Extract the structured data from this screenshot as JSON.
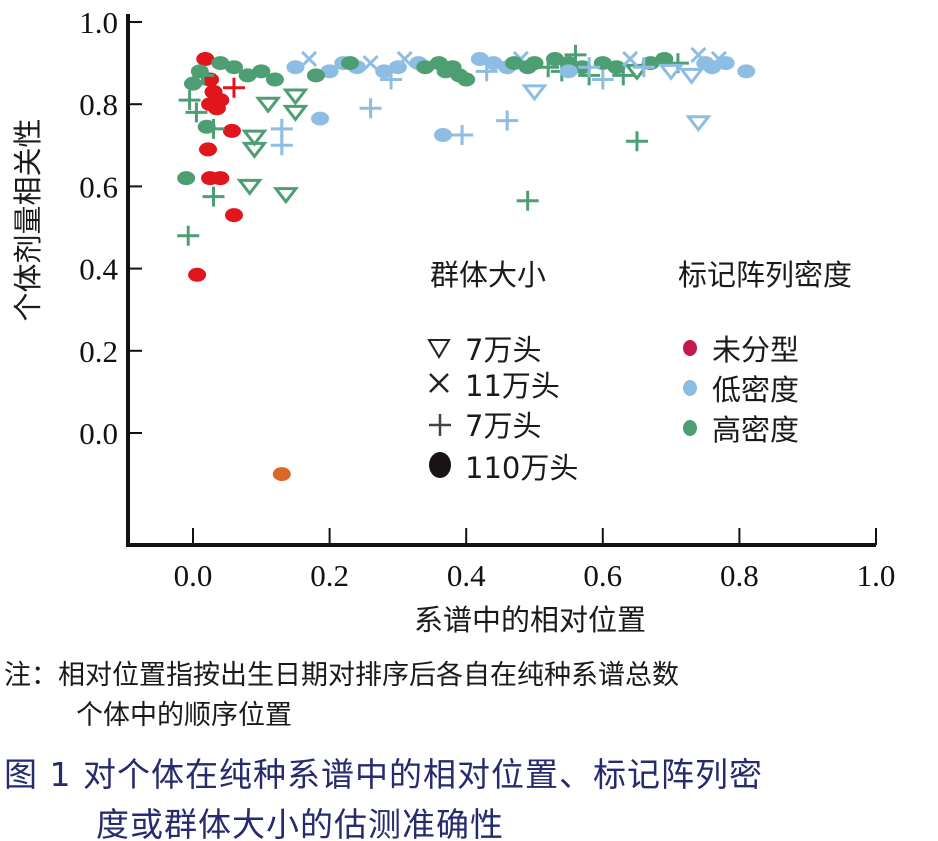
{
  "chart_data": {
    "type": "scatter",
    "title": "",
    "xlabel": "系谱中的相对位置",
    "ylabel": "个体剂量相关性",
    "xlim": [
      -0.1,
      1.0
    ],
    "ylim": [
      -0.25,
      1.0
    ],
    "xticks": [
      "0.0",
      "0.2",
      "0.4",
      "0.6",
      "0.8",
      "1.0"
    ],
    "yticks": [
      "0.0",
      "0.2",
      "0.4",
      "0.6",
      "0.8",
      "1.0"
    ],
    "grid": false,
    "legend_shape": {
      "title": "群体大小",
      "items": [
        {
          "shape": "triangle-down",
          "label": "7万头"
        },
        {
          "shape": "x",
          "label": "11万头"
        },
        {
          "shape": "plus",
          "label": "7万头"
        },
        {
          "shape": "circle",
          "label": "110万头"
        }
      ]
    },
    "legend_color": {
      "title": "标记阵列密度",
      "items": [
        {
          "key": "untyped",
          "label": "未分型",
          "color": "#c8174a"
        },
        {
          "key": "low",
          "label": "低密度",
          "color": "#8bbde3"
        },
        {
          "key": "high",
          "label": "高密度",
          "color": "#4e9e74"
        }
      ]
    },
    "colors": {
      "untyped": "#e0161c",
      "low": "#8dbde3",
      "high": "#4e9e74",
      "other": "#d9672a"
    },
    "points": [
      [
        0.018,
        0.91,
        "circle",
        "untyped"
      ],
      [
        0.025,
        0.86,
        "circle",
        "untyped"
      ],
      [
        0.03,
        0.83,
        "circle",
        "untyped"
      ],
      [
        0.025,
        0.8,
        "circle",
        "untyped"
      ],
      [
        0.035,
        0.79,
        "circle",
        "untyped"
      ],
      [
        0.04,
        0.81,
        "circle",
        "untyped"
      ],
      [
        0.057,
        0.735,
        "circle",
        "untyped"
      ],
      [
        0.022,
        0.69,
        "circle",
        "untyped"
      ],
      [
        0.025,
        0.62,
        "circle",
        "untyped"
      ],
      [
        0.04,
        0.62,
        "circle",
        "untyped"
      ],
      [
        0.06,
        0.53,
        "circle",
        "untyped"
      ],
      [
        0.006,
        0.385,
        "circle",
        "untyped"
      ],
      [
        0.06,
        0.84,
        "plus",
        "untyped"
      ],
      [
        -0.01,
        0.62,
        "circle",
        "high"
      ],
      [
        0.02,
        0.745,
        "circle",
        "high"
      ],
      [
        0.03,
        0.74,
        "plus",
        "high"
      ],
      [
        0.03,
        0.575,
        "plus",
        "high"
      ],
      [
        -0.007,
        0.48,
        "plus",
        "high"
      ],
      [
        -0.005,
        0.81,
        "plus",
        "high"
      ],
      [
        0.0,
        0.85,
        "circle",
        "high"
      ],
      [
        0.01,
        0.88,
        "circle",
        "high"
      ],
      [
        0.04,
        0.9,
        "circle",
        "high"
      ],
      [
        0.06,
        0.89,
        "circle",
        "high"
      ],
      [
        0.08,
        0.87,
        "circle",
        "high"
      ],
      [
        0.1,
        0.88,
        "circle",
        "high"
      ],
      [
        0.12,
        0.86,
        "circle",
        "high"
      ],
      [
        0.005,
        0.78,
        "plus",
        "high"
      ],
      [
        0.015,
        0.87,
        "plus",
        "high"
      ],
      [
        0.11,
        0.8,
        "triangle-down",
        "high"
      ],
      [
        0.15,
        0.82,
        "triangle-down",
        "high"
      ],
      [
        0.15,
        0.78,
        "triangle-down",
        "high"
      ],
      [
        0.09,
        0.72,
        "triangle-down",
        "high"
      ],
      [
        0.09,
        0.69,
        "triangle-down",
        "high"
      ],
      [
        0.083,
        0.6,
        "triangle-down",
        "high"
      ],
      [
        0.136,
        0.58,
        "triangle-down",
        "high"
      ],
      [
        0.13,
        0.74,
        "plus",
        "low"
      ],
      [
        0.13,
        0.7,
        "plus",
        "low"
      ],
      [
        0.26,
        0.79,
        "plus",
        "low"
      ],
      [
        0.29,
        0.86,
        "plus",
        "low"
      ],
      [
        0.186,
        0.765,
        "circle",
        "low"
      ],
      [
        0.366,
        0.725,
        "circle",
        "low"
      ],
      [
        0.394,
        0.725,
        "plus",
        "low"
      ],
      [
        0.46,
        0.76,
        "plus",
        "low"
      ],
      [
        0.65,
        0.71,
        "plus",
        "high"
      ],
      [
        0.49,
        0.565,
        "plus",
        "high"
      ],
      [
        0.74,
        0.755,
        "triangle-down",
        "low"
      ],
      [
        0.5,
        0.83,
        "triangle-down",
        "low"
      ],
      [
        0.81,
        0.88,
        "circle",
        "low"
      ],
      [
        0.15,
        0.89,
        "circle",
        "low"
      ],
      [
        0.17,
        0.91,
        "x",
        "low"
      ],
      [
        0.2,
        0.88,
        "circle",
        "low"
      ],
      [
        0.22,
        0.9,
        "circle",
        "low"
      ],
      [
        0.24,
        0.89,
        "circle",
        "low"
      ],
      [
        0.26,
        0.9,
        "x",
        "low"
      ],
      [
        0.28,
        0.88,
        "circle",
        "low"
      ],
      [
        0.3,
        0.89,
        "circle",
        "low"
      ],
      [
        0.31,
        0.91,
        "x",
        "low"
      ],
      [
        0.33,
        0.9,
        "circle",
        "low"
      ],
      [
        0.18,
        0.87,
        "circle",
        "high"
      ],
      [
        0.23,
        0.9,
        "circle",
        "high"
      ],
      [
        0.34,
        0.89,
        "circle",
        "high"
      ],
      [
        0.36,
        0.9,
        "circle",
        "high"
      ],
      [
        0.38,
        0.89,
        "circle",
        "high"
      ],
      [
        0.39,
        0.87,
        "circle",
        "high"
      ],
      [
        0.4,
        0.86,
        "circle",
        "high"
      ],
      [
        0.37,
        0.88,
        "circle",
        "high"
      ],
      [
        0.42,
        0.91,
        "circle",
        "low"
      ],
      [
        0.44,
        0.9,
        "circle",
        "low"
      ],
      [
        0.43,
        0.88,
        "plus",
        "low"
      ],
      [
        0.46,
        0.89,
        "circle",
        "low"
      ],
      [
        0.48,
        0.91,
        "x",
        "low"
      ],
      [
        0.47,
        0.9,
        "circle",
        "high"
      ],
      [
        0.49,
        0.89,
        "circle",
        "high"
      ],
      [
        0.5,
        0.9,
        "circle",
        "high"
      ],
      [
        0.52,
        0.89,
        "plus",
        "high"
      ],
      [
        0.53,
        0.91,
        "circle",
        "high"
      ],
      [
        0.54,
        0.88,
        "plus",
        "high"
      ],
      [
        0.55,
        0.9,
        "circle",
        "high"
      ],
      [
        0.56,
        0.92,
        "plus",
        "high"
      ],
      [
        0.57,
        0.89,
        "circle",
        "high"
      ],
      [
        0.58,
        0.87,
        "plus",
        "high"
      ],
      [
        0.6,
        0.9,
        "circle",
        "high"
      ],
      [
        0.62,
        0.89,
        "circle",
        "high"
      ],
      [
        0.63,
        0.87,
        "plus",
        "high"
      ],
      [
        0.65,
        0.88,
        "triangle-down",
        "high"
      ],
      [
        0.67,
        0.9,
        "circle",
        "high"
      ],
      [
        0.69,
        0.91,
        "circle",
        "high"
      ],
      [
        0.71,
        0.9,
        "plus",
        "high"
      ],
      [
        0.55,
        0.88,
        "circle",
        "low"
      ],
      [
        0.58,
        0.89,
        "plus",
        "low"
      ],
      [
        0.6,
        0.86,
        "plus",
        "low"
      ],
      [
        0.64,
        0.91,
        "x",
        "low"
      ],
      [
        0.66,
        0.89,
        "plus",
        "low"
      ],
      [
        0.7,
        0.88,
        "triangle-down",
        "low"
      ],
      [
        0.73,
        0.87,
        "triangle-down",
        "low"
      ],
      [
        0.75,
        0.9,
        "circle",
        "low"
      ],
      [
        0.76,
        0.89,
        "circle",
        "low"
      ],
      [
        0.77,
        0.91,
        "x",
        "low"
      ],
      [
        0.78,
        0.9,
        "circle",
        "low"
      ],
      [
        0.74,
        0.92,
        "x",
        "low"
      ],
      [
        0.13,
        -0.1,
        "circle",
        "other"
      ]
    ]
  },
  "note": {
    "line1": "注：相对位置指按出生日期对排序后各自在纯种系谱总数",
    "line2": "个体中的顺序位置"
  },
  "caption": {
    "line1": "图 1  对个体在纯种系谱中的相对位置、标记阵列密",
    "line2": "度或群体大小的估测准确性"
  }
}
